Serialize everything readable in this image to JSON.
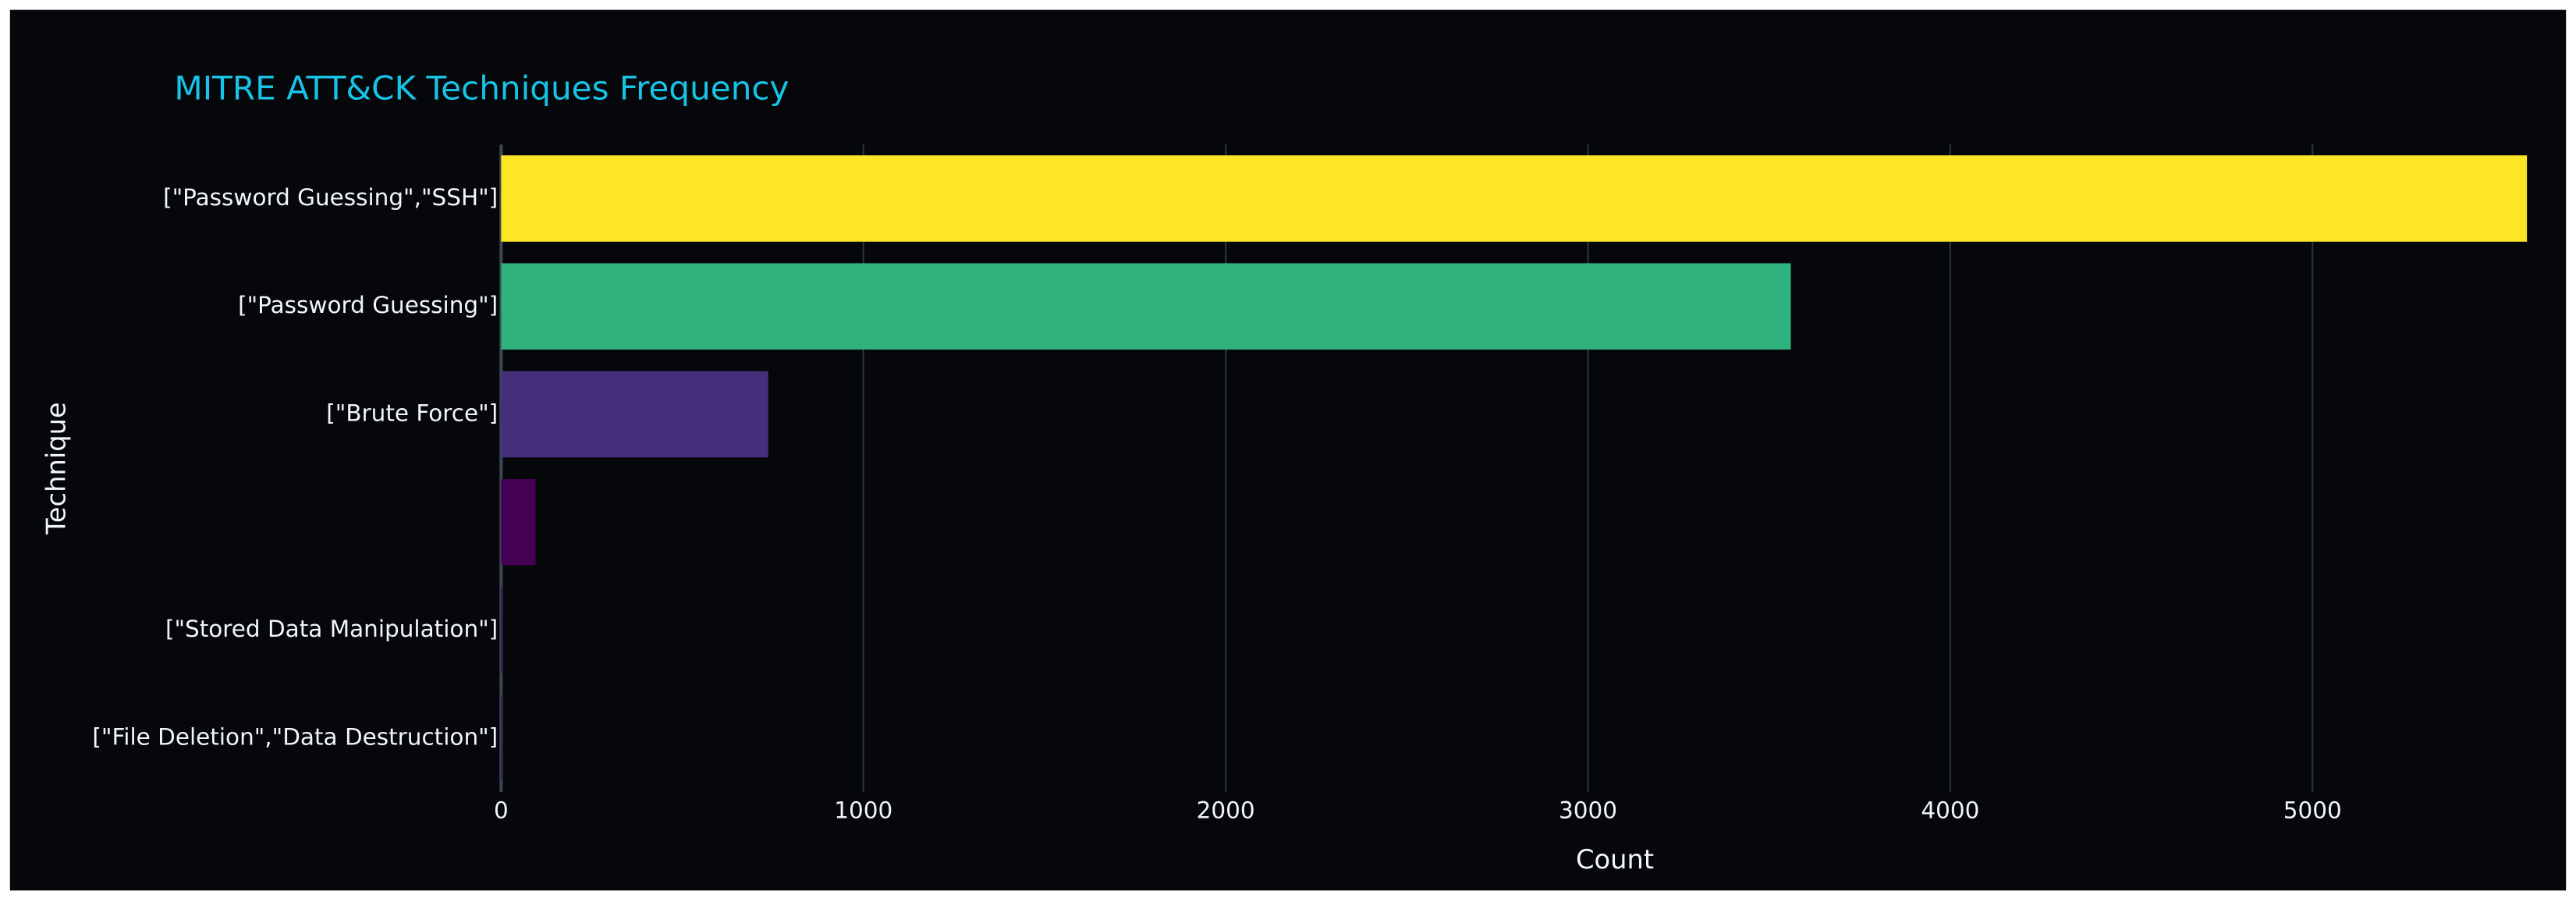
{
  "chart_data": {
    "type": "bar",
    "orientation": "h",
    "title": "MITRE ATT&CK Techniques Frequency",
    "x_label": "Count",
    "y_label": "Technique",
    "categories": [
      "[\"Password Guessing\",\"SSH\"]",
      "[\"Password Guessing\"]",
      "[\"Brute Force\"]",
      null,
      "[\"Stored Data Manipulation\"]",
      "[\"File Deletion\",\"Data Destruction\"]"
    ],
    "values": [
      5592,
      3560,
      737,
      95,
      3,
      2
    ],
    "colors": [
      "#fde725",
      "#2fb17d",
      "#472e7a",
      "#440154",
      "#440154",
      "#440154"
    ],
    "xlim": [
      0,
      5600
    ],
    "xticks": [
      0,
      1000,
      2000,
      3000,
      4000,
      5000
    ],
    "grid": true
  }
}
